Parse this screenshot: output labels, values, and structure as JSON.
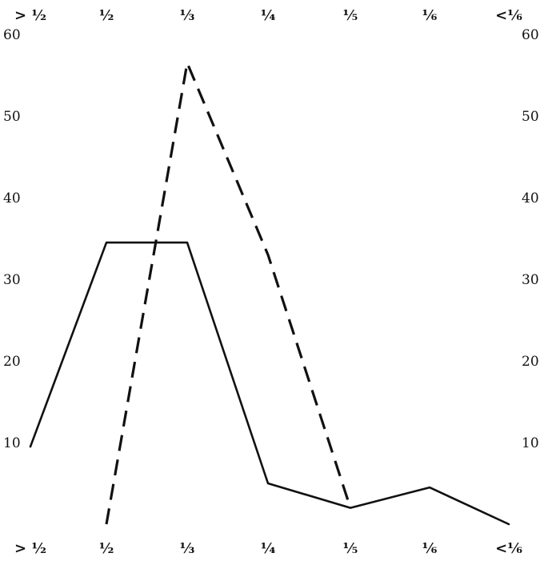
{
  "chart_data": {
    "type": "line",
    "categories": [
      "> ½",
      "½",
      "⅓",
      "¼",
      "⅕",
      "⅙",
      "<⅙"
    ],
    "ylim": [
      0,
      60
    ],
    "yticks": [
      10,
      20,
      30,
      40,
      50,
      60
    ],
    "ytick_labels": [
      "10",
      "20",
      "30",
      "40",
      "50",
      "60"
    ],
    "grid": false,
    "series": [
      {
        "style": "solid",
        "values": [
          9.5,
          34.5,
          34.5,
          5,
          2,
          4.5,
          0
        ]
      },
      {
        "style": "dashed",
        "values": [
          null,
          0,
          56.5,
          33,
          2,
          null,
          null
        ]
      }
    ]
  }
}
